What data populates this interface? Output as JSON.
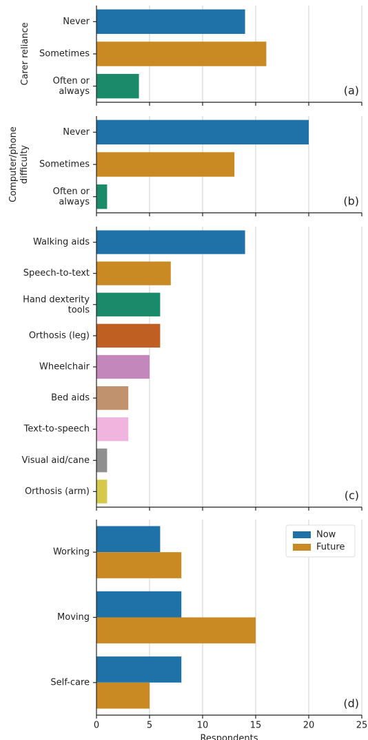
{
  "chart_data": [
    {
      "type": "barh",
      "ylabel": "Carer reliance",
      "annotation": "(a)",
      "categories": [
        "Never",
        "Sometimes",
        "Often or\nalways"
      ],
      "values": [
        14,
        16,
        4
      ],
      "colors": [
        "#1f72a8",
        "#c98a24",
        "#1a8a6a"
      ],
      "xlim": [
        0,
        25
      ],
      "xticks": [
        0,
        5,
        10,
        15,
        20,
        25
      ],
      "grid": true
    },
    {
      "type": "barh",
      "ylabel": "Computer/phone\ndifficulty",
      "annotation": "(b)",
      "categories": [
        "Never",
        "Sometimes",
        "Often or\nalways"
      ],
      "values": [
        20,
        13,
        1
      ],
      "colors": [
        "#1f72a8",
        "#c98a24",
        "#1a8a6a"
      ],
      "xlim": [
        0,
        25
      ],
      "xticks": [
        0,
        5,
        10,
        15,
        20,
        25
      ],
      "grid": true
    },
    {
      "type": "barh",
      "annotation": "(c)",
      "categories": [
        "Walking aids",
        "Speech-to-text",
        "Hand dexterity\ntools",
        "Orthosis (leg)",
        "Wheelchair",
        "Bed aids",
        "Text-to-speech",
        "Visual aid/cane",
        "Orthosis (arm)"
      ],
      "values": [
        14,
        7,
        6,
        6,
        5,
        3,
        3,
        1,
        1
      ],
      "colors": [
        "#1f72a8",
        "#c98a24",
        "#1a8a6a",
        "#bf5f22",
        "#c487bb",
        "#c0926e",
        "#f0b4de",
        "#8f8f8f",
        "#d4c94a"
      ],
      "xlim": [
        0,
        25
      ],
      "xticks": [
        0,
        5,
        10,
        15,
        20,
        25
      ],
      "grid": true
    },
    {
      "type": "grouped_barh",
      "annotation": "(d)",
      "xlabel": "Respondents",
      "categories": [
        "Working",
        "Moving",
        "Self-care"
      ],
      "series": [
        {
          "name": "Now",
          "color": "#1f72a8",
          "values": [
            6,
            8,
            8
          ]
        },
        {
          "name": "Future",
          "color": "#c98a24",
          "values": [
            8,
            15,
            5
          ]
        }
      ],
      "legend": "upper right",
      "xlim": [
        0,
        25
      ],
      "xticks": [
        0,
        5,
        10,
        15,
        20,
        25
      ],
      "grid": true
    }
  ]
}
